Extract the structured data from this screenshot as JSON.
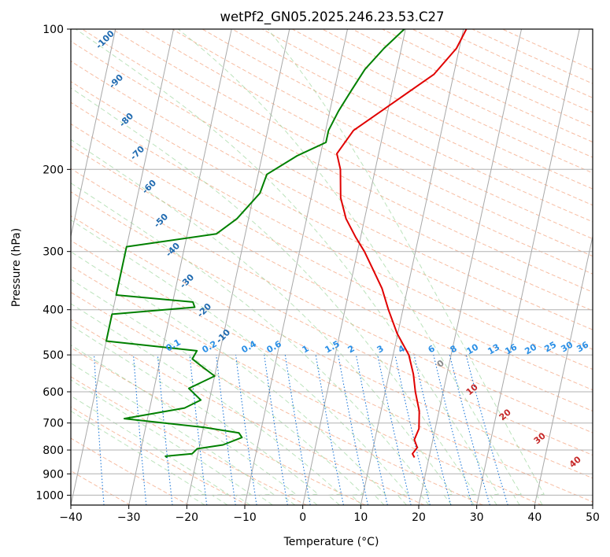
{
  "chart_data": {
    "type": "line",
    "title": "wetPf2_GN05.2025.246.23.53.C27",
    "xlabel": "Temperature (°C)",
    "ylabel": "Pressure (hPa)",
    "xlim": [
      -40,
      50
    ],
    "ylim": [
      1050,
      100
    ],
    "y_scale": "log",
    "x_ticks": [
      -40,
      -30,
      -20,
      -10,
      0,
      10,
      20,
      30,
      40,
      50
    ],
    "y_ticks": [
      100,
      200,
      300,
      400,
      500,
      600,
      700,
      800,
      900,
      1000
    ],
    "grid": true,
    "series": [
      {
        "color": "#e00000",
        "points": [
          [
            17.5,
            830
          ],
          [
            17.0,
            815
          ],
          [
            17.6,
            790
          ],
          [
            16.8,
            760
          ],
          [
            17.2,
            720
          ],
          [
            16.6,
            660
          ],
          [
            15.2,
            600
          ],
          [
            14.2,
            550
          ],
          [
            12.7,
            500
          ],
          [
            9.9,
            450
          ],
          [
            7.5,
            400
          ],
          [
            5.6,
            360
          ],
          [
            3.5,
            330
          ],
          [
            1.2,
            300
          ],
          [
            -0.8,
            280
          ],
          [
            -3.2,
            255
          ],
          [
            -4.9,
            230
          ],
          [
            -6.0,
            200
          ],
          [
            -7.2,
            185
          ],
          [
            -5.2,
            165
          ],
          [
            0.3,
            145
          ],
          [
            6.6,
            125
          ],
          [
            9.5,
            110
          ],
          [
            10.5,
            100
          ]
        ]
      },
      {
        "color": "#008000",
        "points": [
          [
            -25.2,
            830
          ],
          [
            -25.5,
            825
          ],
          [
            -21.0,
            815
          ],
          [
            -20.3,
            795
          ],
          [
            -16.0,
            780
          ],
          [
            -13.0,
            752
          ],
          [
            -13.7,
            735
          ],
          [
            -20.0,
            715
          ],
          [
            -34.0,
            685
          ],
          [
            -24.0,
            650
          ],
          [
            -21.5,
            625
          ],
          [
            -24.0,
            590
          ],
          [
            -20.0,
            555
          ],
          [
            -22.5,
            530
          ],
          [
            -24.5,
            510
          ],
          [
            -24.0,
            490
          ],
          [
            -40.0,
            467
          ],
          [
            -40.0,
            409
          ],
          [
            -26.0,
            395
          ],
          [
            -26.5,
            385
          ],
          [
            -40.0,
            372
          ],
          [
            -40.0,
            293
          ],
          [
            -25.0,
            275
          ],
          [
            -22.0,
            255
          ],
          [
            -19.0,
            225
          ],
          [
            -18.5,
            205
          ],
          [
            -14.0,
            187
          ],
          [
            -9.5,
            175
          ],
          [
            -9.5,
            165
          ],
          [
            -8.5,
            150
          ],
          [
            -7.0,
            135
          ],
          [
            -5.5,
            122
          ],
          [
            -3.0,
            110
          ],
          [
            -0.2,
            100
          ]
        ]
      }
    ],
    "annotations": {
      "dry_adiabats": [
        -100,
        -90,
        -80,
        -70,
        -60,
        -50,
        -40,
        -30,
        -20,
        -10
      ],
      "mixing_ratios": [
        "0.1",
        "0.2",
        "0.4",
        "0.6",
        "1",
        "1.5",
        "2",
        "3",
        "4",
        "6",
        "8",
        "10",
        "13",
        "16",
        "20",
        "25",
        "30",
        "36"
      ],
      "moist_adiabats": [
        "0",
        "10",
        "20",
        "30",
        "40"
      ]
    }
  }
}
